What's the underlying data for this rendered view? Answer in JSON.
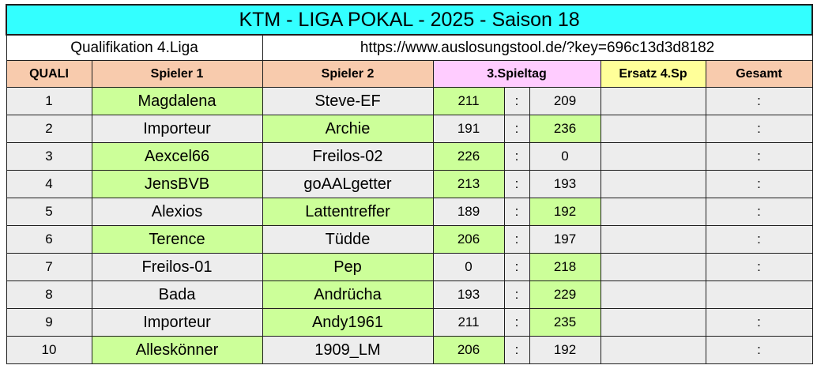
{
  "title": "KTM - LIGA  POKAL  - 2025 - Saison 18",
  "subtitle": {
    "left": "Qualifikation 4.Liga",
    "right": "https://www.auslosungstool.de/?key=696c13d3d8182"
  },
  "headers": {
    "quali": "QUALI",
    "spieler1": "Spieler 1",
    "spieler2": "Spieler 2",
    "spieltag": "3.Spieltag",
    "ersatz": "Ersatz 4.Sp",
    "gesamt": "Gesamt"
  },
  "rows": [
    {
      "n": "1",
      "p1": "Magdalena",
      "p2": "Steve-EF",
      "s1": "211",
      "sep": ":",
      "s2": "209",
      "gesamt": ":",
      "winner": 1
    },
    {
      "n": "2",
      "p1": "Importeur",
      "p2": "Archie",
      "s1": "191",
      "sep": ":",
      "s2": "236",
      "gesamt": ":",
      "winner": 2
    },
    {
      "n": "3",
      "p1": "Aexcel66",
      "p2": "Freilos-02",
      "s1": "226",
      "sep": ":",
      "s2": "0",
      "gesamt": ":",
      "winner": 1
    },
    {
      "n": "4",
      "p1": "JensBVB",
      "p2": "goAALgetter",
      "s1": "213",
      "sep": ":",
      "s2": "193",
      "gesamt": ":",
      "winner": 1
    },
    {
      "n": "5",
      "p1": "Alexios",
      "p2": "Lattentreffer",
      "s1": "189",
      "sep": ":",
      "s2": "192",
      "gesamt": ":",
      "winner": 2
    },
    {
      "n": "6",
      "p1": "Terence",
      "p2": "Tüdde",
      "s1": "206",
      "sep": ":",
      "s2": "197",
      "gesamt": ":",
      "winner": 1
    },
    {
      "n": "7",
      "p1": "Freilos-01",
      "p2": "Pep",
      "s1": "0",
      "sep": ":",
      "s2": "218",
      "gesamt": ":",
      "winner": 2
    },
    {
      "n": "8",
      "p1": "Bada",
      "p2": "Andrücha",
      "s1": "193",
      "sep": ":",
      "s2": "229",
      "gesamt": "",
      "winner": 2
    },
    {
      "n": "9",
      "p1": "Importeur",
      "p2": "Andy1961",
      "s1": "211",
      "sep": ":",
      "s2": "235",
      "gesamt": ":",
      "winner": 2
    },
    {
      "n": "10",
      "p1": "Alleskönner",
      "p2": "1909_LM",
      "s1": "206",
      "sep": ":",
      "s2": "192",
      "gesamt": ":",
      "winner": 1
    }
  ],
  "colors": {
    "title_bg": "#33ffff",
    "header_bg": "#f8cbad",
    "spieltag_bg": "#ffccff",
    "ersatz_bg": "#ffff99",
    "row_bg": "#ededed",
    "winner_bg": "#ccff99"
  }
}
